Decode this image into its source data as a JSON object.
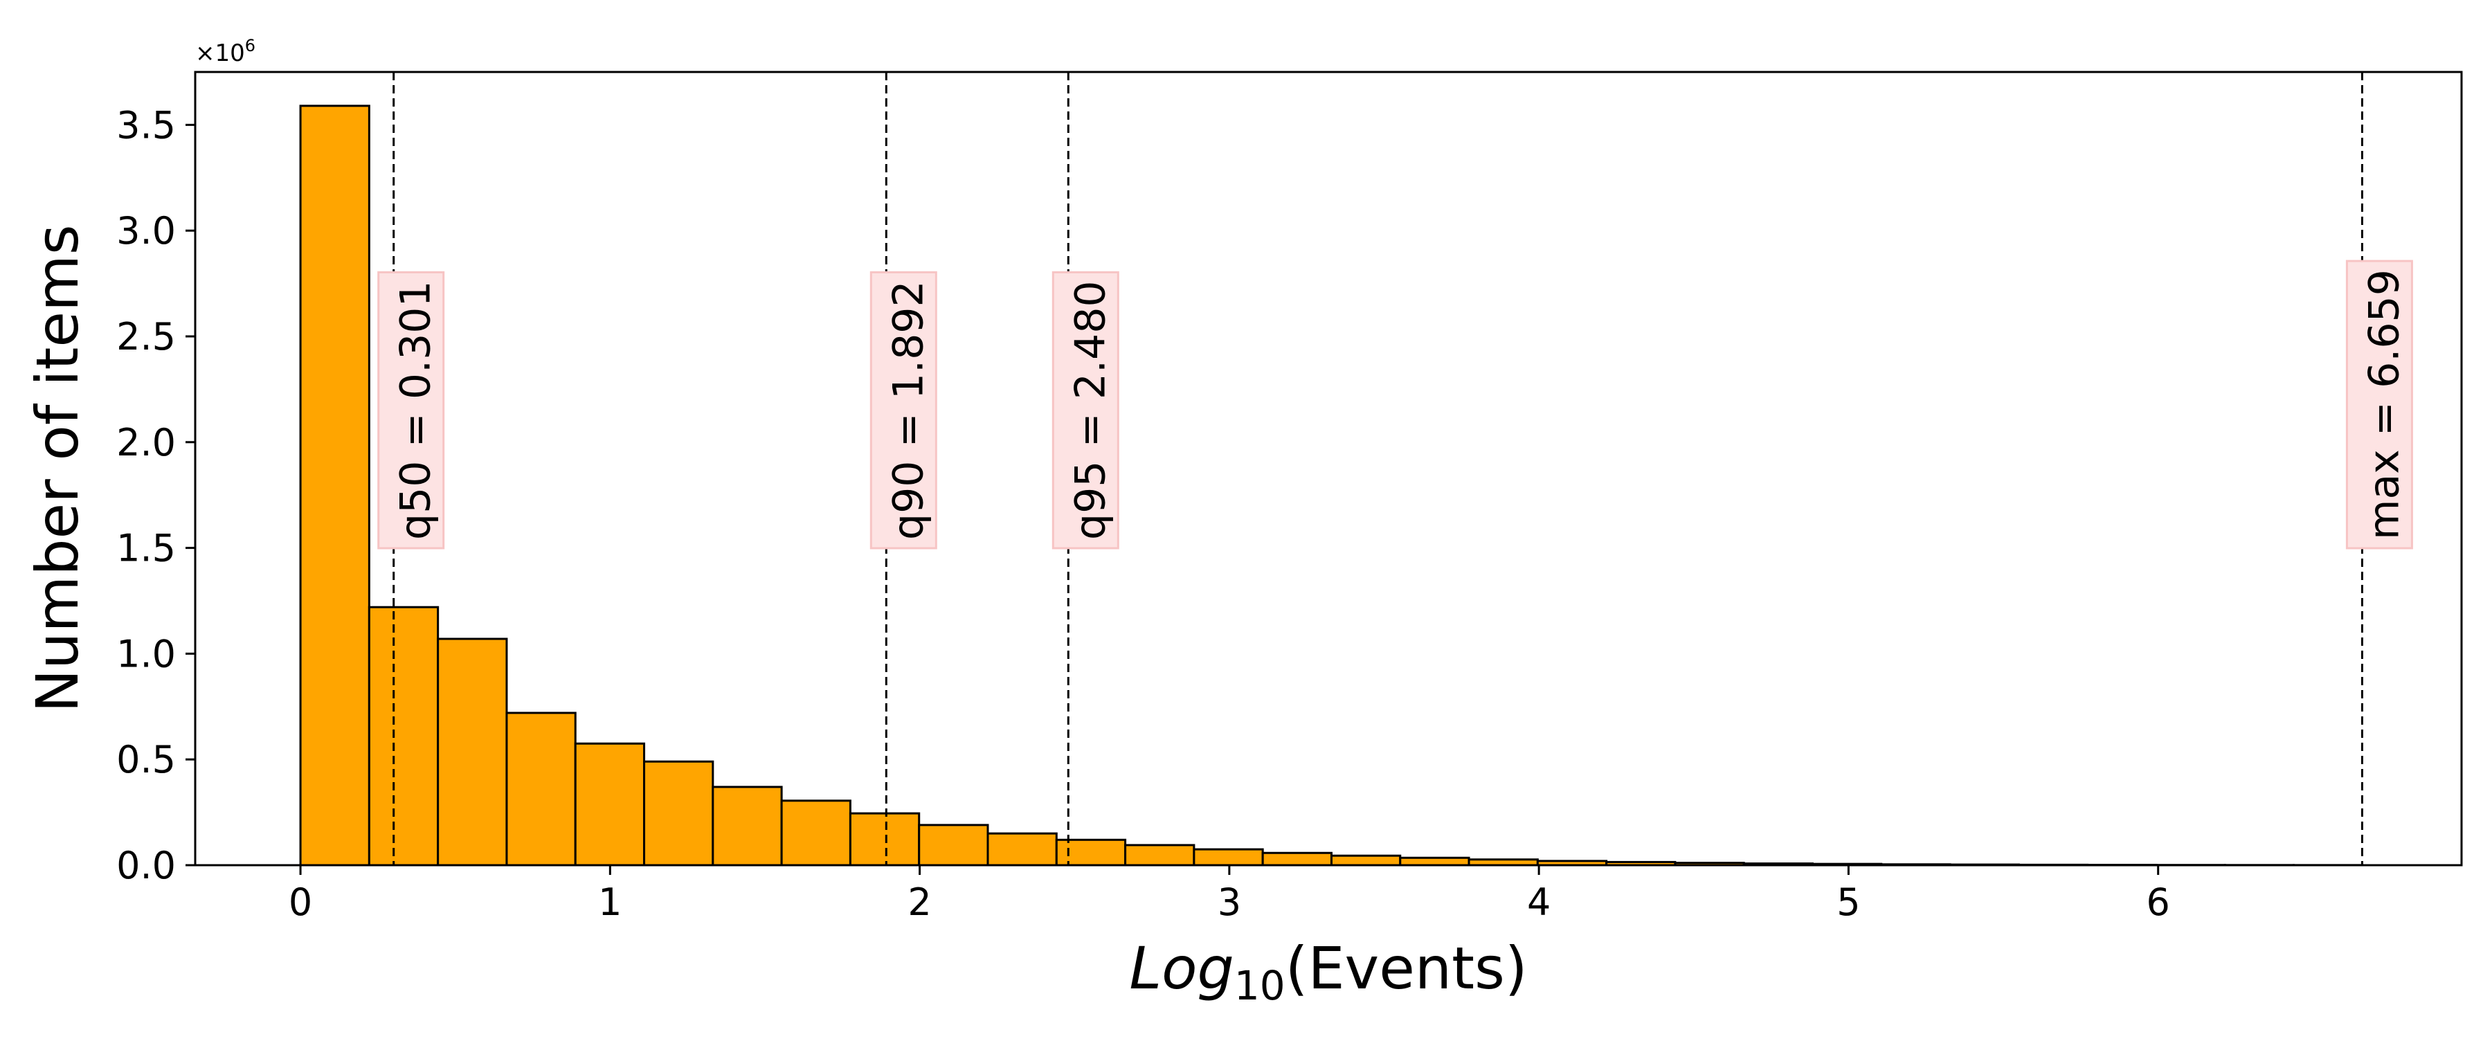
{
  "chart_data": {
    "type": "bar",
    "title": "",
    "xlabel": {
      "prefix": "Log",
      "subscript": "10",
      "suffix": "(Events)"
    },
    "ylabel": "Number of items",
    "y_scale_label": {
      "base": "×10",
      "exponent": "6"
    },
    "xlim": [
      -0.34,
      6.98
    ],
    "ylim": [
      0,
      3.75
    ],
    "x_ticks": [
      0,
      1,
      2,
      3,
      4,
      5,
      6
    ],
    "x_tick_labels": [
      "0",
      "1",
      "2",
      "3",
      "4",
      "5",
      "6"
    ],
    "y_ticks": [
      0,
      0.5,
      1.0,
      1.5,
      2.0,
      2.5,
      3.0,
      3.5
    ],
    "y_tick_labels": [
      "0.0",
      "0.5",
      "1.0",
      "1.5",
      "2.0",
      "2.5",
      "3.0",
      "3.5"
    ],
    "grid": false,
    "bar_color": "#FFA500",
    "bar_edge_color": "#000000",
    "bin_width": 0.222,
    "bin_starts": [
      0,
      0.222,
      0.444,
      0.666,
      0.888,
      1.11,
      1.332,
      1.554,
      1.776,
      1.998,
      2.22,
      2.442,
      2.664,
      2.886,
      3.108,
      3.33,
      3.552,
      3.774,
      3.996,
      4.218,
      4.44,
      4.662,
      4.884,
      5.106,
      5.328,
      5.55,
      5.772,
      5.994,
      6.216,
      6.438
    ],
    "values": [
      3.59,
      1.22,
      1.07,
      0.72,
      0.575,
      0.49,
      0.37,
      0.305,
      0.245,
      0.19,
      0.15,
      0.12,
      0.095,
      0.075,
      0.058,
      0.045,
      0.035,
      0.027,
      0.02,
      0.015,
      0.011,
      0.008,
      0.006,
      0.004,
      0.003,
      0.002,
      0.0015,
      0.001,
      0.0007,
      0.0005
    ],
    "annotations": [
      {
        "x": 0.301,
        "label": "q50 = 0.301"
      },
      {
        "x": 1.892,
        "label": "q90 = 1.892"
      },
      {
        "x": 2.48,
        "label": "q95 = 2.480"
      },
      {
        "x": 6.659,
        "label": "max = 6.659"
      }
    ],
    "annotation_box_color": "#FDE3E3",
    "annotation_box_edge": "#F7C4C4"
  }
}
